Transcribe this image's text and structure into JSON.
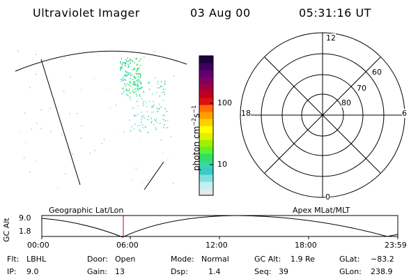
{
  "header": {
    "instrument": "Ultraviolet Imager",
    "date": "03 Aug 00",
    "time": "05:31:16 UT"
  },
  "colorbar": {
    "unit_label": "photon cm",
    "unit_exp1": "−2",
    "unit_s": "s",
    "unit_exp2": "−1",
    "ticks": [
      "100",
      "10"
    ],
    "colors": [
      "#e8e8e8",
      "#c0f0f0",
      "#80e0e0",
      "#40c8c8",
      "#38d8a0",
      "#30e060",
      "#60f030",
      "#a0f000",
      "#e0f000",
      "#ffff00",
      "#ffd000",
      "#ffa000",
      "#ff7000",
      "#e01010",
      "#c00020",
      "#a00040",
      "#800060",
      "#600070",
      "#400060",
      "#200040"
    ]
  },
  "polar": {
    "top_label": "12",
    "bottom_label": "0",
    "left_label": "18",
    "right_label": "6",
    "lat_labels": [
      "60",
      "70",
      "80"
    ]
  },
  "orbit": {
    "ylabel": "GC Alt",
    "ytick_top": "9.0",
    "ytick_bottom": "1.8",
    "left_title": "Geographic Lat/Lon",
    "right_title": "Apex MLat/MLT",
    "xticks": [
      "00:00",
      "06:00",
      "12:00",
      "18:00",
      "23:59"
    ],
    "marker_color": "#cc0000"
  },
  "info": {
    "filter_label": "Flt:",
    "filter_value": "LBHL",
    "ip_label": "IP:",
    "ip_value": "9.0",
    "door_label": "Door:",
    "door_value": "Open",
    "gain_label": "Gain:",
    "gain_value": "13",
    "mode_label": "Mode:",
    "mode_value": "Normal",
    "dsp_label": "Dsp:",
    "dsp_value": "1.4",
    "gcalt_label": "GC Alt:",
    "gcalt_value": "1.9 Re",
    "seq_label": "Seq:",
    "seq_value": "39",
    "glat_label": "GLat:",
    "glat_value": "−83.2",
    "glon_label": "GLon:",
    "glon_value": "238.9"
  }
}
